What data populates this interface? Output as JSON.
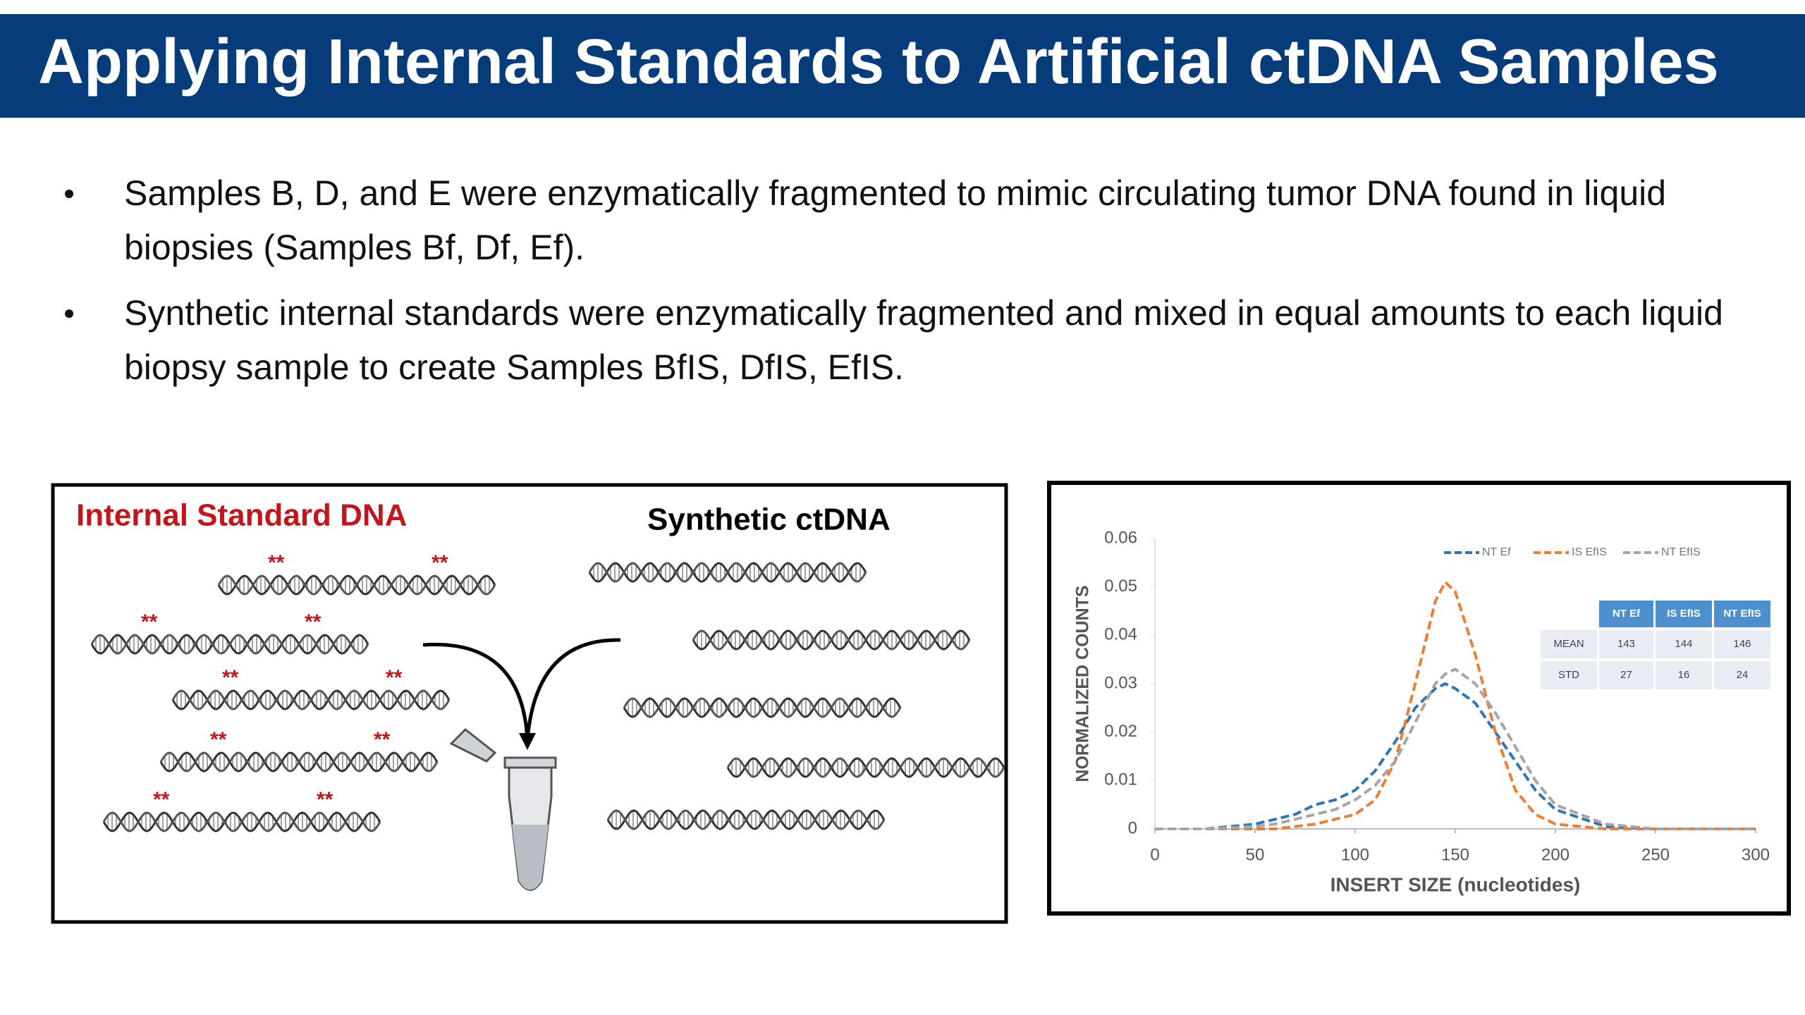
{
  "header": {
    "title": "Applying Internal Standards to Artificial ctDNA Samples"
  },
  "bullets": [
    "Samples B, D, and E were enzymatically fragmented to mimic circulating tumor DNA found in liquid biopsies (Samples Bf, Df, Ef).",
    "Synthetic internal standards were enzymatically fragmented and mixed in equal amounts to each liquid biopsy sample to create Samples BfIS, DfIS, EfIS."
  ],
  "figure": {
    "left_label": "Internal Standard DNA",
    "right_label": "Synthetic ctDNA",
    "marker": "**"
  },
  "chart_data": {
    "type": "line",
    "x_label": "INSERT SIZE (nucleotides)",
    "y_label": "NORMALIZED COUNTS",
    "x": [
      0,
      25,
      50,
      60,
      70,
      80,
      90,
      100,
      110,
      120,
      130,
      140,
      145,
      150,
      160,
      170,
      180,
      190,
      200,
      225,
      250,
      300
    ],
    "series": [
      {
        "name": "NT Ef",
        "color": "#2e75b6",
        "values": [
          0,
          0,
          0.001,
          0.002,
          0.003,
          0.005,
          0.006,
          0.008,
          0.012,
          0.018,
          0.025,
          0.029,
          0.03,
          0.029,
          0.026,
          0.02,
          0.014,
          0.008,
          0.004,
          0.0005,
          0,
          0
        ]
      },
      {
        "name": "IS EfIS",
        "color": "#ed7d31",
        "values": [
          0,
          0,
          0,
          0,
          0.0005,
          0.001,
          0.002,
          0.003,
          0.006,
          0.014,
          0.03,
          0.047,
          0.051,
          0.049,
          0.036,
          0.02,
          0.008,
          0.003,
          0.001,
          0,
          0,
          0
        ]
      },
      {
        "name": "NT EfIS",
        "color": "#a5a5a5",
        "values": [
          0,
          0,
          0.0005,
          0.001,
          0.002,
          0.003,
          0.004,
          0.006,
          0.009,
          0.014,
          0.022,
          0.03,
          0.032,
          0.033,
          0.03,
          0.024,
          0.017,
          0.01,
          0.005,
          0.001,
          0,
          0
        ]
      }
    ],
    "xlim": [
      0,
      300
    ],
    "xticks": [
      0,
      50,
      100,
      150,
      200,
      250,
      300
    ],
    "ylim": [
      0,
      0.06
    ],
    "yticks": [
      0,
      0.01,
      0.02,
      0.03,
      0.04,
      0.05,
      0.06
    ],
    "grid": false,
    "legend": "top"
  },
  "inset_table": {
    "header": [
      "NT Ef",
      "IS EfIS",
      "NT EfIS"
    ],
    "rows": [
      [
        "MEAN",
        "143",
        "144",
        "146"
      ],
      [
        "STD",
        "27",
        "16",
        "24"
      ]
    ]
  }
}
